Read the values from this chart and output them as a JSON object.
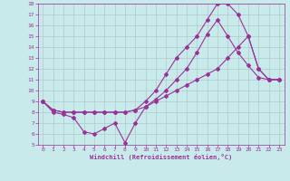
{
  "xlabel": "Windchill (Refroidissement éolien,°C)",
  "bg_color": "#c8eaea",
  "line_color": "#993399",
  "grid_color": "#b0c8c8",
  "xlim": [
    -0.5,
    23.5
  ],
  "ylim": [
    5,
    18
  ],
  "xticks": [
    0,
    1,
    2,
    3,
    4,
    5,
    6,
    7,
    8,
    9,
    10,
    11,
    12,
    13,
    14,
    15,
    16,
    17,
    18,
    19,
    20,
    21,
    22,
    23
  ],
  "yticks": [
    5,
    6,
    7,
    8,
    9,
    10,
    11,
    12,
    13,
    14,
    15,
    16,
    17,
    18
  ],
  "line1_x": [
    0,
    1,
    2,
    3,
    4,
    5,
    6,
    7,
    8,
    9,
    10,
    11,
    12,
    13,
    14,
    15,
    16,
    17,
    18,
    19,
    20,
    21,
    22,
    23
  ],
  "line1_y": [
    9,
    8,
    7.8,
    7.5,
    6.2,
    6,
    6.5,
    7,
    5.2,
    7,
    8.5,
    9.2,
    10,
    11,
    12,
    13.5,
    15.2,
    16.5,
    15,
    13.5,
    12.3,
    11.2,
    11,
    11
  ],
  "line2_x": [
    0,
    1,
    2,
    3,
    4,
    5,
    6,
    7,
    8,
    9,
    10,
    11,
    12,
    13,
    14,
    15,
    16,
    17,
    18,
    19,
    20,
    21,
    22,
    23
  ],
  "line2_y": [
    9,
    8.2,
    8,
    8,
    8,
    8,
    8,
    8,
    8,
    8.2,
    9,
    10,
    11.5,
    13,
    14,
    15,
    16.5,
    18,
    18,
    17,
    15,
    12,
    11,
    11
  ],
  "line3_x": [
    0,
    1,
    2,
    3,
    4,
    5,
    6,
    7,
    8,
    9,
    10,
    11,
    12,
    13,
    14,
    15,
    16,
    17,
    18,
    19,
    20,
    21,
    22,
    23
  ],
  "line3_y": [
    9,
    8.2,
    8,
    8,
    8,
    8,
    8,
    8,
    8,
    8.2,
    8.5,
    9,
    9.5,
    10,
    10.5,
    11,
    11.5,
    12,
    13,
    14,
    15,
    12,
    11,
    11
  ]
}
